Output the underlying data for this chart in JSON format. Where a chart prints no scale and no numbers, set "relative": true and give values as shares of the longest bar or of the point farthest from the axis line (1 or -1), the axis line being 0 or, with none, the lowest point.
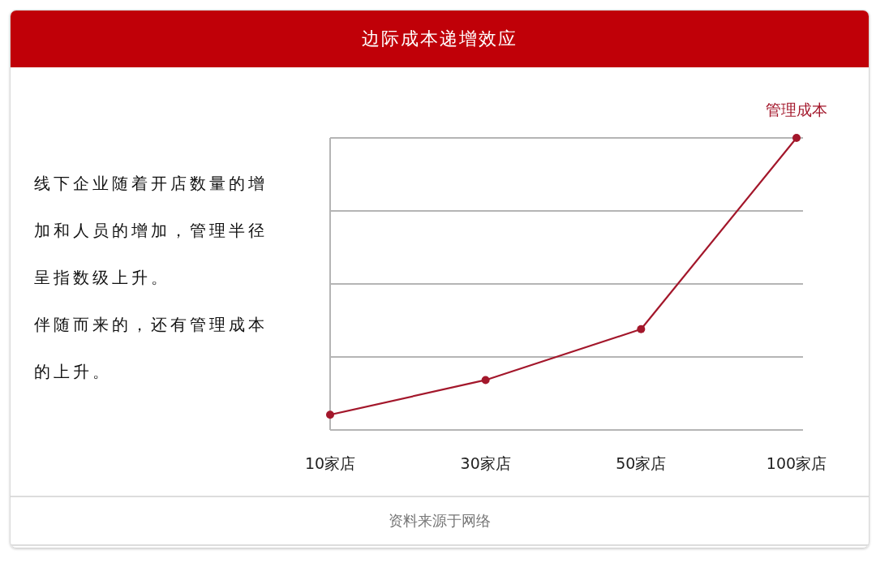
{
  "chart_data": {
    "type": "line",
    "title": "边际成本递增效应",
    "relative": true,
    "categories": [
      "10家店",
      "30家店",
      "50家店",
      "100家店"
    ],
    "series": [
      {
        "name": "管理成本",
        "color": "#a3172b",
        "values": [
          0.052,
          0.171,
          0.345,
          1
        ]
      }
    ],
    "marker": "circle",
    "line_style": "solid",
    "grid": "y",
    "tick_labels": "x",
    "annotations": [
      "线下企业随着开店数量的增加和人员的增加，管理半径呈指数级上升。",
      "伴随而来的，还有管理成本的上升。",
      "资料来源于网络"
    ]
  }
}
